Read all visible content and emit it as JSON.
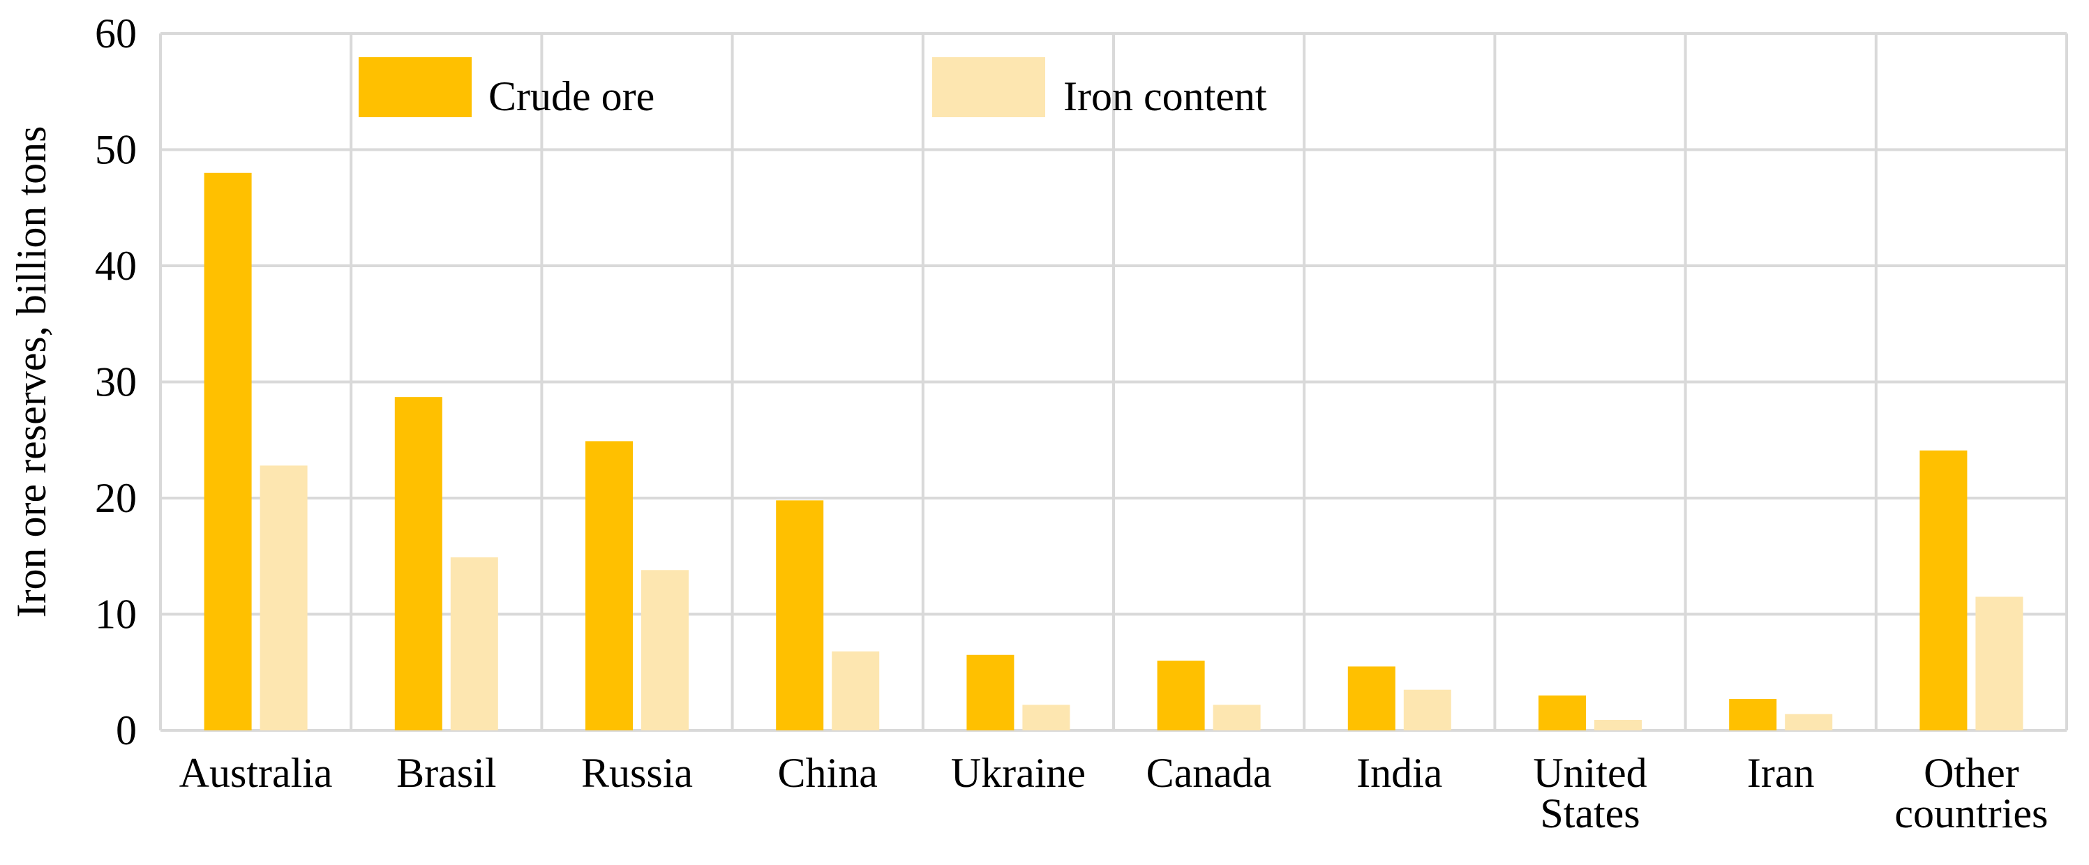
{
  "chart_data": {
    "type": "bar",
    "title": "",
    "xlabel": "",
    "ylabel": "Iron ore reserves, billion tons",
    "ylim": [
      0,
      60
    ],
    "yticks": [
      0,
      10,
      20,
      30,
      40,
      50,
      60
    ],
    "grid": true,
    "legend_position": "top-left",
    "categories": [
      [
        "Australia"
      ],
      [
        "Brasil"
      ],
      [
        "Russia"
      ],
      [
        "China"
      ],
      [
        "Ukraine"
      ],
      [
        "Canada"
      ],
      [
        "India"
      ],
      [
        "United",
        "States"
      ],
      [
        "Iran"
      ],
      [
        "Other",
        "countries"
      ]
    ],
    "series": [
      {
        "name": "Crude ore",
        "color": "#FFC000",
        "values": [
          48,
          28.7,
          24.9,
          19.8,
          6.5,
          6.0,
          5.5,
          3.0,
          2.7,
          24.1
        ]
      },
      {
        "name": "Iron content",
        "color": "#FDE6B0",
        "values": [
          22.8,
          14.9,
          13.8,
          6.8,
          2.2,
          2.2,
          3.5,
          0.9,
          1.4,
          11.5
        ]
      }
    ]
  }
}
